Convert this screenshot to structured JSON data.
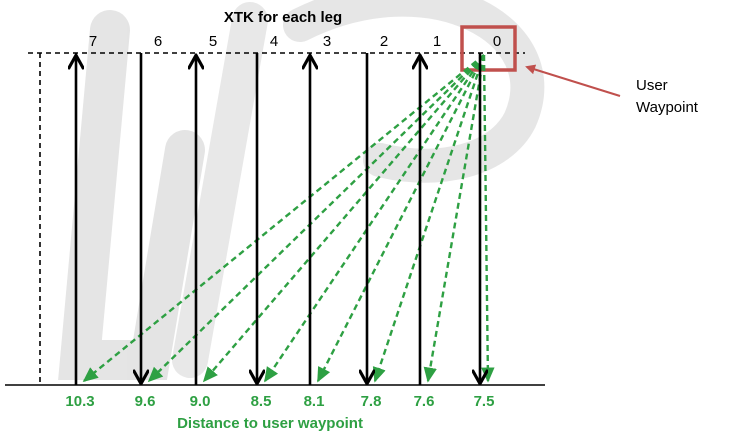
{
  "title": "XTK for each leg",
  "bottom_label": "Distance to user waypoint",
  "user_waypoint_label": {
    "line1": "User",
    "line2": "Waypoint"
  },
  "colors": {
    "arrow": "#000000",
    "green": "#2ea043",
    "box": "#c0504d",
    "watermark": "#cfcfcf"
  },
  "legs": [
    {
      "index": "7",
      "distance": "10.3",
      "direction": "up"
    },
    {
      "index": "6",
      "distance": "9.6",
      "direction": "down"
    },
    {
      "index": "5",
      "distance": "9.0",
      "direction": "up"
    },
    {
      "index": "4",
      "distance": "8.5",
      "direction": "down"
    },
    {
      "index": "3",
      "distance": "8.1",
      "direction": "up"
    },
    {
      "index": "2",
      "distance": "7.8",
      "direction": "down"
    },
    {
      "index": "1",
      "distance": "7.6",
      "direction": "up"
    },
    {
      "index": "0",
      "distance": "7.5",
      "direction": "down"
    }
  ]
}
